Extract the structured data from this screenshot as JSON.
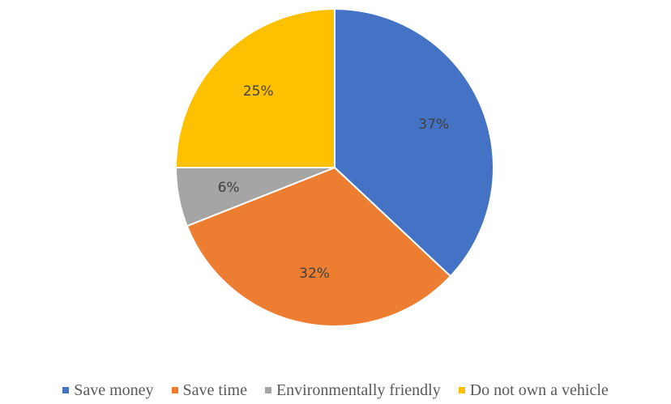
{
  "chart_data": {
    "type": "pie",
    "title": "",
    "slices": [
      {
        "label": "Save money",
        "value": 37,
        "display": "37%",
        "color": "#4472C4"
      },
      {
        "label": "Save time",
        "value": 32,
        "display": "32%",
        "color": "#ED7D31"
      },
      {
        "label": "Environmentally friendly",
        "value": 6,
        "display": "6%",
        "color": "#A5A5A5"
      },
      {
        "label": "Do not own a vehicle",
        "value": 25,
        "display": "25%",
        "color": "#FFC000"
      }
    ],
    "legend_position": "bottom",
    "start_angle": "12 o'clock",
    "direction": "clockwise"
  }
}
